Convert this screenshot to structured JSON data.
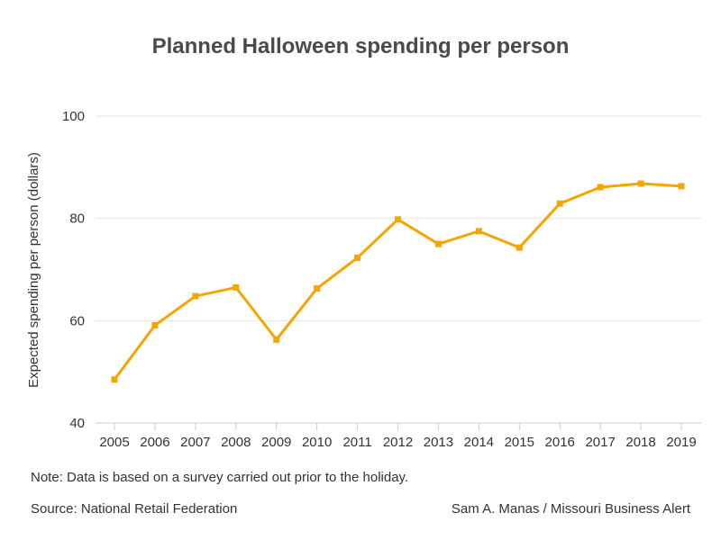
{
  "chart_data": {
    "type": "line",
    "title": "Planned Halloween spending per person",
    "xlabel": "",
    "ylabel": "Expected spending per person (dollars)",
    "x": [
      "2005",
      "2006",
      "2007",
      "2008",
      "2009",
      "2010",
      "2011",
      "2012",
      "2013",
      "2014",
      "2015",
      "2016",
      "2017",
      "2018",
      "2019"
    ],
    "series": [
      {
        "values": [
          48.5,
          59.1,
          64.8,
          66.5,
          56.3,
          66.3,
          72.3,
          79.8,
          75.0,
          77.5,
          74.3,
          82.9,
          86.1,
          86.8,
          86.3
        ],
        "color": "#f5a500"
      }
    ],
    "ylim": [
      40,
      100
    ],
    "yticks": [
      40,
      60,
      80,
      100
    ],
    "grid": true,
    "legend": "none"
  },
  "footer": {
    "note": "Note: Data is based on a survey carried out prior to the holiday.",
    "source": "Source: National Retail Federation",
    "credit": "Sam A. Manas / Missouri Business Alert"
  }
}
